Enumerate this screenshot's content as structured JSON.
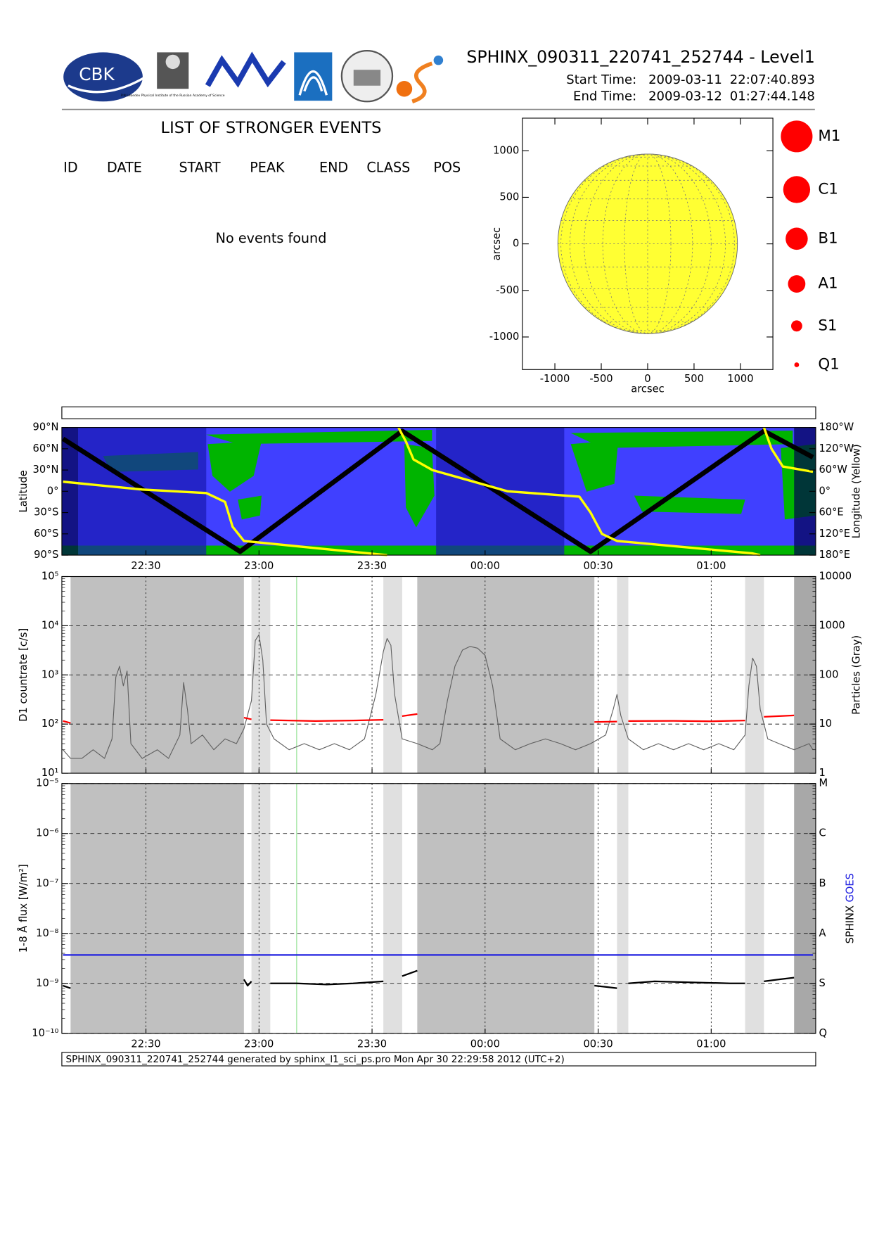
{
  "header": {
    "title": "SPHINX_090311_220741_252744 - Level1",
    "start_label": "Start Time:",
    "start_date": "2009-03-11",
    "start_time": "22:07:40.893",
    "end_label": "End Time:",
    "end_date": "2009-03-12",
    "end_time": "01:27:44.148",
    "logo_text": "CBK",
    "logo_caption": "P.N.Lebedev Physical Institute of the Russian Academy of Science"
  },
  "events": {
    "title": "LIST OF STRONGER EVENTS",
    "columns": [
      "ID",
      "DATE",
      "START",
      "PEAK",
      "END",
      "CLASS",
      "POS"
    ],
    "message": "No events found"
  },
  "footer": "SPHINX_090311_220741_252744 generated by sphinx_l1_sci_ps.pro Mon Apr 30 22:29:58 2012 (UTC+2)",
  "chart_data": [
    {
      "type": "disk",
      "xlabel": "arcsec",
      "ylabel": "arcsec",
      "xlim": [
        -1350,
        1350
      ],
      "ylim": [
        -1350,
        1350
      ],
      "xticks": [
        -1000,
        -500,
        0,
        500,
        1000
      ],
      "yticks": [
        -1000,
        -500,
        0,
        500,
        1000
      ],
      "radius": 968,
      "color": "#ffff33",
      "grid": true,
      "legend": [
        "M1",
        "C1",
        "B1",
        "A1",
        "S1",
        "Q1"
      ],
      "legend_color": "#ff0000"
    },
    {
      "type": "map",
      "ylabel": "Latitude",
      "y2label": "Longitude (Yellow)",
      "xlim": [
        "22:07:40.893",
        "01:27:44.148"
      ],
      "xticks": [
        "22:30",
        "23:00",
        "23:30",
        "00:00",
        "00:30",
        "01:00"
      ],
      "ylim": [
        -90,
        90
      ],
      "yticks": [
        {
          "value": -90,
          "label": "90°S"
        },
        {
          "value": -60,
          "label": "60°S"
        },
        {
          "value": -30,
          "label": "30°S"
        },
        {
          "value": 0,
          "label": "0°"
        },
        {
          "value": 30,
          "label": "30°N"
        },
        {
          "value": 60,
          "label": "60°N"
        },
        {
          "value": 90,
          "label": "90°N"
        }
      ],
      "y2lim": [
        180,
        -180
      ],
      "y2ticks": [
        {
          "value": -180,
          "label": "180°W"
        },
        {
          "value": -120,
          "label": "120°W"
        },
        {
          "value": -60,
          "label": "60°W"
        },
        {
          "value": 0,
          "label": "0°"
        },
        {
          "value": 60,
          "label": "60°E"
        },
        {
          "value": 120,
          "label": "120°E"
        },
        {
          "value": 180,
          "label": "180°E"
        }
      ],
      "background": "#4040ff",
      "land_color": "#00b400",
      "shading": [
        {
          "x": [
            "22:07:40.893",
            "22:12"
          ],
          "color": "#000050"
        },
        {
          "x": [
            "22:12",
            "22:46"
          ],
          "color": "#1818b0"
        },
        {
          "x": [
            "23:47",
            "00:21"
          ],
          "color": "#1818b0"
        },
        {
          "x": [
            "01:22",
            "01:27:44.148"
          ],
          "color": "#000050"
        }
      ],
      "series": [
        {
          "color": "#000000",
          "x": [
            "22:08",
            "22:55",
            "23:38",
            "00:28",
            "01:14",
            "01:27"
          ],
          "values": [
            74,
            -85,
            85,
            -85,
            85,
            48
          ]
        },
        {
          "color": "#ffff00",
          "axis": "y2",
          "x": [
            "22:08",
            "22:29",
            "22:46",
            "22:51",
            "22:53",
            "22:56",
            "23:15",
            "23:34",
            "23:36",
            "23:37",
            "23:39",
            "23:41",
            "23:46",
            "00:06",
            "00:25",
            "00:28",
            "00:31",
            "00:35",
            "01:11",
            "01:13",
            "01:13",
            "01:14",
            "01:16",
            "01:19",
            "01:27"
          ],
          "values": [
            -27,
            -5,
            5,
            30,
            100,
            140,
            160,
            180,
            null,
            -180,
            -140,
            -90,
            -60,
            0,
            15,
            60,
            120,
            140,
            175,
            180,
            null,
            -180,
            -120,
            -70,
            -55
          ]
        }
      ]
    },
    {
      "type": "line",
      "ylabel": "D1 countrate [c/s]",
      "y2label": "Particles (Gray)",
      "log": true,
      "xlim": [
        "22:07:40.893",
        "01:27:44.148"
      ],
      "xticks": [
        "22:30",
        "23:00",
        "23:30",
        "00:00",
        "00:30",
        "01:00"
      ],
      "grid": true,
      "ylim": [
        10,
        100000
      ],
      "yticks": [
        {
          "value": 10,
          "label": "10¹"
        },
        {
          "value": 100,
          "label": "10²"
        },
        {
          "value": 1000,
          "label": "10³"
        },
        {
          "value": 10000,
          "label": "10⁴"
        },
        {
          "value": 100000,
          "label": "10⁵"
        }
      ],
      "y2lim": [
        1,
        10000
      ],
      "y2ticks": [
        1,
        10,
        100,
        1000,
        10000
      ],
      "shading": [
        {
          "x": [
            "22:10",
            "22:56"
          ],
          "color": "#c0c0c0"
        },
        {
          "x": [
            "22:58",
            "23:03"
          ],
          "color": "#e0e0e0"
        },
        {
          "x": [
            "23:33",
            "23:38"
          ],
          "color": "#e0e0e0"
        },
        {
          "x": [
            "23:42",
            "00:29"
          ],
          "color": "#c0c0c0"
        },
        {
          "x": [
            "00:35",
            "00:38"
          ],
          "color": "#e0e0e0"
        },
        {
          "x": [
            "01:09",
            "01:14"
          ],
          "color": "#e0e0e0"
        },
        {
          "x": [
            "01:22",
            "01:27:44.148"
          ],
          "color": "#a8a8a8"
        }
      ],
      "marker_line": {
        "x": "23:10",
        "color": "#90e090"
      },
      "series": [
        {
          "color": "#606060",
          "axis": "y2",
          "x": [
            "22:08",
            "22:10",
            "22:13",
            "22:16",
            "22:19",
            "22:21",
            "22:22",
            "22:23",
            "22:24",
            "22:25",
            "22:26",
            "22:29",
            "22:33",
            "22:36",
            "22:39",
            "22:40",
            "22:41",
            "22:42",
            "22:45",
            "22:48",
            "22:51",
            "22:54",
            "22:56",
            "22:58",
            "22:59",
            "23:00",
            "23:01",
            "23:02",
            "23:04",
            "23:08",
            "23:12",
            "23:16",
            "23:20",
            "23:24",
            "23:28",
            "23:31",
            "23:33",
            "23:34",
            "23:35",
            "23:36",
            "23:38",
            "23:42",
            "23:46",
            "23:48",
            "23:50",
            "23:52",
            "23:54",
            "23:56",
            "23:58",
            "00:00",
            "00:02",
            "00:04",
            "00:08",
            "00:12",
            "00:16",
            "00:20",
            "00:24",
            "00:28",
            "00:32",
            "00:34",
            "00:35",
            "00:36",
            "00:38",
            "00:42",
            "00:46",
            "00:50",
            "00:54",
            "00:58",
            "01:02",
            "01:06",
            "01:09",
            "01:10",
            "01:11",
            "01:12",
            "01:13",
            "01:15",
            "01:18",
            "01:22",
            "01:26",
            "01:27"
          ],
          "values": [
            3,
            2,
            2,
            3,
            2,
            5,
            90,
            150,
            60,
            120,
            4,
            2,
            3,
            2,
            6,
            70,
            20,
            4,
            6,
            3,
            5,
            4,
            8,
            30,
            500,
            660,
            200,
            10,
            5,
            3,
            4,
            3,
            4,
            3,
            5,
            40,
            300,
            550,
            400,
            40,
            5,
            4,
            3,
            4,
            30,
            150,
            320,
            380,
            350,
            250,
            60,
            5,
            3,
            4,
            5,
            4,
            3,
            4,
            6,
            20,
            40,
            15,
            5,
            3,
            4,
            3,
            4,
            3,
            4,
            3,
            6,
            60,
            220,
            150,
            20,
            5,
            4,
            3,
            4,
            3
          ]
        },
        {
          "color": "#ff0000",
          "x": [
            "22:08",
            "22:10",
            "22:11",
            "22:56",
            "22:58",
            "22:59",
            "23:03",
            "23:15",
            "23:25",
            "23:33",
            "23:34",
            "23:38",
            "23:42",
            "23:43",
            "00:29",
            "00:35",
            "00:36",
            "00:38",
            "00:50",
            "01:00",
            "01:09",
            "01:10",
            "01:14",
            "01:22"
          ],
          "values": [
            115,
            105,
            null,
            135,
            125,
            null,
            120,
            115,
            118,
            122,
            null,
            145,
            160,
            null,
            110,
            112,
            null,
            115,
            116,
            114,
            118,
            null,
            140,
            150
          ]
        }
      ]
    },
    {
      "type": "line",
      "ylabel": "1-8 Å flux [W/m²]",
      "log": true,
      "legend": "right",
      "xlim": [
        "22:07:40.893",
        "01:27:44.148"
      ],
      "xticks": [
        "22:30",
        "23:00",
        "23:30",
        "00:00",
        "00:30",
        "01:00"
      ],
      "grid": true,
      "ylim": [
        1e-10,
        1e-05
      ],
      "yticks": [
        {
          "value": 1e-10,
          "label": "10⁻¹⁰"
        },
        {
          "value": 1e-09,
          "label": "10⁻⁹"
        },
        {
          "value": 1e-08,
          "label": "10⁻⁸"
        },
        {
          "value": 1e-07,
          "label": "10⁻⁷"
        },
        {
          "value": 1e-06,
          "label": "10⁻⁶"
        },
        {
          "value": 1e-05,
          "label": "10⁻⁵"
        }
      ],
      "y2lim": [
        1e-10,
        1e-05
      ],
      "y2ticks": [
        {
          "value": 1e-10,
          "label": "Q"
        },
        {
          "value": 1e-09,
          "label": "S"
        },
        {
          "value": 1e-08,
          "label": "A"
        },
        {
          "value": 1e-07,
          "label": "B"
        },
        {
          "value": 1e-06,
          "label": "C"
        },
        {
          "value": 1e-05,
          "label": "M"
        }
      ],
      "shading": [
        {
          "x": [
            "22:10",
            "22:56"
          ],
          "color": "#c0c0c0"
        },
        {
          "x": [
            "22:58",
            "23:03"
          ],
          "color": "#e0e0e0"
        },
        {
          "x": [
            "23:33",
            "23:38"
          ],
          "color": "#e0e0e0"
        },
        {
          "x": [
            "23:42",
            "00:29"
          ],
          "color": "#c0c0c0"
        },
        {
          "x": [
            "00:35",
            "00:38"
          ],
          "color": "#e0e0e0"
        },
        {
          "x": [
            "01:09",
            "01:14"
          ],
          "color": "#e0e0e0"
        },
        {
          "x": [
            "01:22",
            "01:27:44.148"
          ],
          "color": "#a8a8a8"
        }
      ],
      "marker_line": {
        "x": "23:10",
        "color": "#90e090"
      },
      "series": [
        {
          "name": "SPHINX",
          "color": "#000000",
          "x": [
            "22:08",
            "22:10",
            "22:11",
            "22:56",
            "22:57",
            "22:58",
            "22:59",
            "23:03",
            "23:10",
            "23:18",
            "23:25",
            "23:33",
            "23:34",
            "23:38",
            "23:42",
            "23:43",
            "00:29",
            "00:32",
            "00:35",
            "00:36",
            "00:38",
            "00:45",
            "00:55",
            "01:05",
            "01:09",
            "01:10",
            "01:14",
            "01:18",
            "01:22"
          ],
          "values": [
            9e-10,
            8e-10,
            null,
            1.2e-09,
            9e-10,
            1.1e-09,
            null,
            1e-09,
            1e-09,
            9.5e-10,
            1e-09,
            1.1e-09,
            null,
            1.4e-09,
            1.8e-09,
            null,
            9e-10,
            8.5e-10,
            8e-10,
            null,
            1e-09,
            1.1e-09,
            1.05e-09,
            1e-09,
            1e-09,
            null,
            1.1e-09,
            1.2e-09,
            1.3e-09
          ]
        },
        {
          "name": "GOES",
          "color": "#2020e0",
          "x": [
            "22:08",
            "01:27"
          ],
          "values": [
            3.7e-09,
            3.7e-09
          ]
        }
      ]
    }
  ]
}
